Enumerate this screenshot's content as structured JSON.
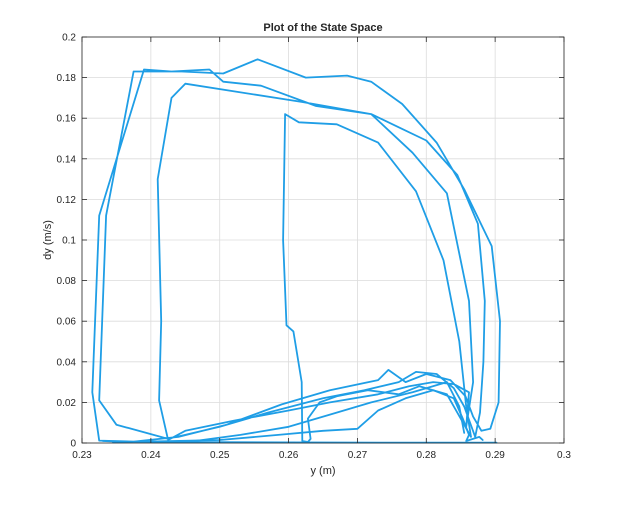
{
  "chart_data": {
    "type": "line",
    "title": "Plot of the State Space",
    "xlabel": "y (m)",
    "ylabel": "dy (m/s)",
    "xlim": [
      0.23,
      0.3
    ],
    "ylim": [
      0,
      0.2
    ],
    "xticks": [
      0.23,
      0.24,
      0.25,
      0.26,
      0.27,
      0.28,
      0.29,
      0.3
    ],
    "yticks": [
      0,
      0.02,
      0.04,
      0.06,
      0.08,
      0.1,
      0.12,
      0.14,
      0.16,
      0.18,
      0.2
    ],
    "xtick_labels": [
      "0.23",
      "0.24",
      "0.25",
      "0.26",
      "0.27",
      "0.28",
      "0.29",
      "0.3"
    ],
    "ytick_labels": [
      "0",
      "0.02",
      "0.04",
      "0.06",
      "0.08",
      "0.1",
      "0.12",
      "0.14",
      "0.16",
      "0.18",
      "0.2"
    ],
    "grid": true,
    "line_color": "#1f9ee6",
    "series": [
      {
        "values": [
          [
            0.2902,
            0.0002
          ],
          [
            0.274,
            0.0002
          ],
          [
            0.26,
            0.0003
          ],
          [
            0.25,
            0.0004
          ],
          [
            0.2405,
            0.0004
          ],
          [
            0.2325,
            0.0012
          ],
          [
            0.2315,
            0.025
          ],
          [
            0.2325,
            0.112
          ],
          [
            0.239,
            0.184
          ],
          [
            0.243,
            0.183
          ],
          [
            0.2485,
            0.184
          ],
          [
            0.2505,
            0.178
          ],
          [
            0.256,
            0.176
          ],
          [
            0.264,
            0.166
          ],
          [
            0.272,
            0.162
          ],
          [
            0.278,
            0.143
          ],
          [
            0.283,
            0.123
          ],
          [
            0.2862,
            0.07
          ],
          [
            0.2868,
            0.03
          ],
          [
            0.2858,
            0.008
          ],
          [
            0.2862,
            0.025
          ],
          [
            0.284,
            0.029
          ],
          [
            0.281,
            0.03
          ],
          [
            0.2775,
            0.028
          ],
          [
            0.273,
            0.024
          ],
          [
            0.266,
            0.02
          ],
          [
            0.26,
            0.016
          ],
          [
            0.252,
            0.011
          ],
          [
            0.245,
            0.006
          ],
          [
            0.2425,
            0.0015
          ],
          [
            0.2412,
            0.021
          ],
          [
            0.2415,
            0.06
          ],
          [
            0.241,
            0.13
          ],
          [
            0.243,
            0.17
          ],
          [
            0.245,
            0.177
          ],
          [
            0.262,
            0.168
          ],
          [
            0.272,
            0.162
          ],
          [
            0.28,
            0.149
          ],
          [
            0.2845,
            0.132
          ],
          [
            0.2875,
            0.108
          ],
          [
            0.2885,
            0.07
          ],
          [
            0.2883,
            0.04
          ],
          [
            0.2878,
            0.015
          ],
          [
            0.2871,
            0.003
          ],
          [
            0.2855,
            0.018
          ],
          [
            0.284,
            0.027
          ],
          [
            0.2815,
            0.034
          ],
          [
            0.2785,
            0.035
          ],
          [
            0.276,
            0.03
          ],
          [
            0.271,
            0.026
          ],
          [
            0.265,
            0.022
          ],
          [
            0.257,
            0.015
          ],
          [
            0.25,
            0.008
          ],
          [
            0.2425,
            0.002
          ],
          [
            0.235,
            0.009
          ],
          [
            0.2325,
            0.021
          ],
          [
            0.2335,
            0.112
          ],
          [
            0.2375,
            0.183
          ],
          [
            0.2445,
            0.183
          ],
          [
            0.2505,
            0.182
          ],
          [
            0.2555,
            0.189
          ],
          [
            0.2625,
            0.18
          ],
          [
            0.2685,
            0.181
          ],
          [
            0.272,
            0.178
          ],
          [
            0.2765,
            0.167
          ],
          [
            0.2815,
            0.148
          ],
          [
            0.2855,
            0.125
          ],
          [
            0.2895,
            0.097
          ],
          [
            0.2907,
            0.06
          ],
          [
            0.2905,
            0.02
          ],
          [
            0.2893,
            0.007
          ],
          [
            0.288,
            0.006
          ],
          [
            0.2868,
            0.013
          ],
          [
            0.2857,
            0.023
          ],
          [
            0.2835,
            0.031
          ],
          [
            0.28,
            0.034
          ],
          [
            0.277,
            0.03
          ],
          [
            0.2745,
            0.036
          ],
          [
            0.273,
            0.031
          ],
          [
            0.266,
            0.026
          ],
          [
            0.259,
            0.019
          ],
          [
            0.251,
            0.009
          ],
          [
            0.244,
            0.003
          ],
          [
            0.237,
            0.0005
          ],
          [
            0.233,
            0.001
          ]
        ]
      },
      {
        "values": [
          [
            0.2595,
            0.162
          ],
          [
            0.2615,
            0.158
          ],
          [
            0.267,
            0.157
          ],
          [
            0.273,
            0.148
          ],
          [
            0.2785,
            0.124
          ],
          [
            0.2825,
            0.09
          ],
          [
            0.2848,
            0.05
          ],
          [
            0.2858,
            0.018
          ],
          [
            0.2865,
            0.003
          ],
          [
            0.285,
            0.012
          ],
          [
            0.283,
            0.024
          ],
          [
            0.279,
            0.028
          ],
          [
            0.276,
            0.024
          ],
          [
            0.2715,
            0.026
          ],
          [
            0.267,
            0.023
          ],
          [
            0.2645,
            0.02
          ],
          [
            0.2628,
            0.012
          ],
          [
            0.2632,
            0.002
          ],
          [
            0.2628,
            0.0005
          ],
          [
            0.262,
            0.001
          ],
          [
            0.2619,
            0.03
          ],
          [
            0.2607,
            0.055
          ],
          [
            0.2597,
            0.058
          ],
          [
            0.2592,
            0.1
          ],
          [
            0.2595,
            0.162
          ]
        ]
      },
      {
        "values": [
          [
            0.2345,
            0.0003
          ],
          [
            0.25,
            0.0015
          ],
          [
            0.2585,
            0.004
          ],
          [
            0.265,
            0.006
          ],
          [
            0.27,
            0.007
          ],
          [
            0.273,
            0.016
          ],
          [
            0.277,
            0.022
          ],
          [
            0.281,
            0.026
          ],
          [
            0.284,
            0.022
          ],
          [
            0.2853,
            0.012
          ],
          [
            0.2862,
            0.004
          ],
          [
            0.2858,
            0.001
          ],
          [
            0.2877,
            0.003
          ],
          [
            0.2882,
            0.0015
          ]
        ]
      },
      {
        "values": [
          [
            0.246,
            0.0008
          ],
          [
            0.253,
            0.004
          ],
          [
            0.26,
            0.008
          ],
          [
            0.266,
            0.014
          ],
          [
            0.272,
            0.02
          ],
          [
            0.278,
            0.025
          ],
          [
            0.283,
            0.03
          ],
          [
            0.2848,
            0.018
          ],
          [
            0.2855,
            0.005
          ]
        ]
      }
    ]
  }
}
